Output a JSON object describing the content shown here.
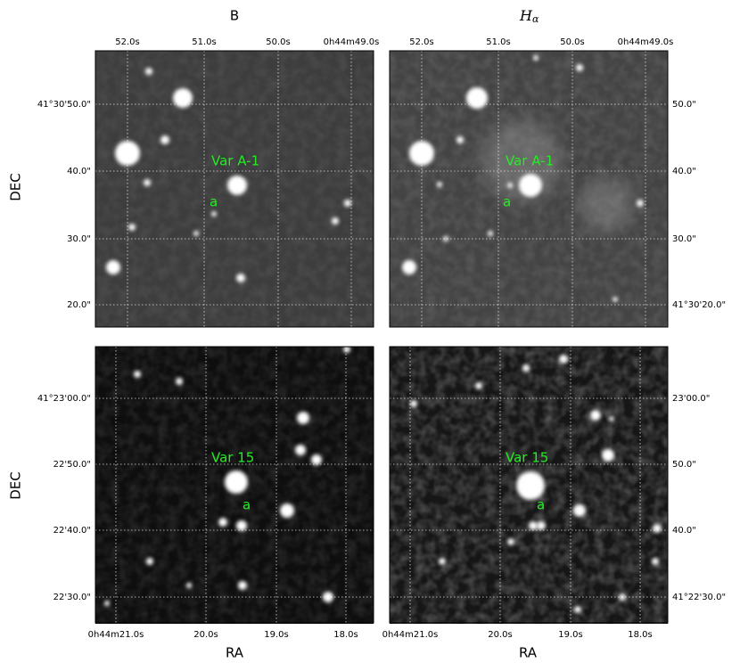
{
  "titles": {
    "left": "B",
    "right_main": "H",
    "right_sub": "α"
  },
  "axis_labels": {
    "dec": "DEC",
    "ra": "RA"
  },
  "top_row": {
    "ra_ticks": [
      "52.0s",
      "51.0s",
      "50.0s",
      "0h44m49.0s"
    ],
    "dec_ticks_left": [
      "41°30'50.0\"",
      "40.0\"",
      "30.0\"",
      "20.0\""
    ],
    "dec_ticks_right": [
      "50.0\"",
      "40.0\"",
      "30.0\"",
      "41°30'20.0\""
    ],
    "labels": [
      "Var A-1",
      "a"
    ]
  },
  "bottom_row": {
    "ra_ticks": [
      "0h44m21.0s",
      "20.0s",
      "19.0s",
      "18.0s"
    ],
    "dec_ticks_left": [
      "41°23'00.0\"",
      "22'50.0\"",
      "22'40.0\"",
      "22'30.0\""
    ],
    "dec_ticks_right": [
      "23'00.0\"",
      "50.0\"",
      "40.0\"",
      "41°22'30.0\""
    ],
    "labels": [
      "Var 15",
      "a"
    ]
  }
}
